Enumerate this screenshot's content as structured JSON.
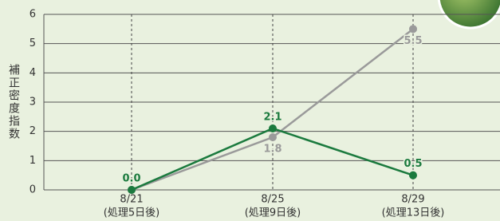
{
  "chart_data": {
    "type": "line",
    "y_axis_label": "補正密度指数",
    "categories": [
      "8/21",
      "8/25",
      "8/29"
    ],
    "category_sublabels": [
      "(処理5日後)",
      "(処理9日後)",
      "(処理13日後)"
    ],
    "series": [
      {
        "color": "#9a9a9a",
        "values": [
          0,
          1.8,
          5.5
        ],
        "value_labels": [
          null,
          "1.8",
          "5.5"
        ]
      },
      {
        "color": "#1b7a3e",
        "values": [
          0,
          2.1,
          0.5
        ],
        "value_labels": [
          "0.0",
          "2.1",
          "0.5"
        ]
      }
    ],
    "ylim": [
      0,
      6
    ],
    "yticks": [
      0,
      1,
      2,
      3,
      4,
      5,
      6
    ],
    "grid": true
  }
}
